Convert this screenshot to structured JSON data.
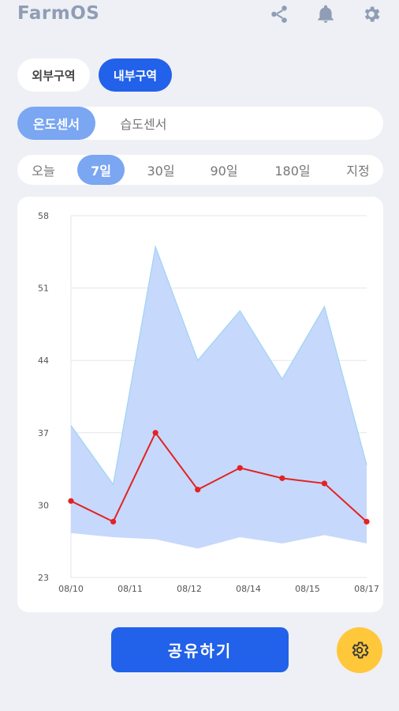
{
  "header": {
    "logo": "FarmOS",
    "icons": [
      "share-icon",
      "bell-icon",
      "gear-icon"
    ]
  },
  "zones": [
    {
      "label": "외부구역",
      "selected": false
    },
    {
      "label": "내부구역",
      "selected": true
    }
  ],
  "sensors": [
    {
      "label": "온도센서",
      "selected": true
    },
    {
      "label": "습도센서",
      "selected": false
    }
  ],
  "periods": [
    {
      "label": "오늘",
      "selected": false
    },
    {
      "label": "7일",
      "selected": true
    },
    {
      "label": "30일",
      "selected": false
    },
    {
      "label": "90일",
      "selected": false
    },
    {
      "label": "180일",
      "selected": false
    },
    {
      "label": "지정",
      "selected": false
    }
  ],
  "chart_data": {
    "type": "line",
    "y_ticks": [
      23,
      30,
      37,
      44,
      51,
      58
    ],
    "ylim": [
      23,
      58
    ],
    "x_tick_labels": [
      "08/10",
      "08/11",
      "08/12",
      "08/14",
      "08/15",
      "08/17"
    ],
    "x_tick_positions": [
      0,
      1.05,
      2.1,
      3.15,
      4.2,
      5.25
    ],
    "xlim": [
      0,
      5.25
    ],
    "grid": true,
    "series": [
      {
        "role": "range",
        "x": [
          0,
          0.75,
          1.5,
          2.25,
          3.0,
          3.75,
          4.5,
          5.25
        ],
        "upper": [
          37.7,
          32.0,
          55.0,
          44.0,
          48.8,
          42.2,
          49.2,
          33.9
        ],
        "lower": [
          27.3,
          26.9,
          26.7,
          25.8,
          26.9,
          26.3,
          27.1,
          26.3
        ],
        "color": "#c6d8fb",
        "stroke": "#9fd4f5"
      },
      {
        "role": "average",
        "x": [
          0,
          0.75,
          1.5,
          2.25,
          3.0,
          3.75,
          4.5,
          5.25
        ],
        "y": [
          30.4,
          28.4,
          37.0,
          31.5,
          33.6,
          32.6,
          32.1,
          28.4
        ],
        "color": "#e32222"
      }
    ]
  },
  "actions": {
    "share_label": "공유하기",
    "settings_icon": "gear-icon"
  }
}
